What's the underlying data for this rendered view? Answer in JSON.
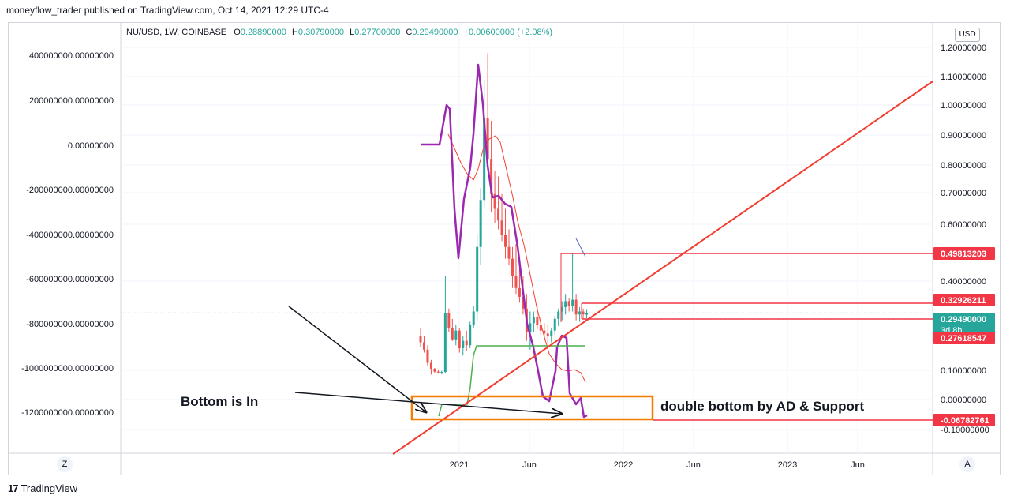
{
  "header": {
    "published": "moneyflow_trader published on TradingView.com, Oct 14, 2021 12:29 UTC-4"
  },
  "legend": {
    "symbol": "NU/USD, 1W, COINBASE",
    "open_label": "O",
    "open": "0.28890000",
    "high_label": "H",
    "high": "0.30790000",
    "low_label": "L",
    "low": "0.27700000",
    "close_label": "C",
    "close": "0.29490000",
    "change": "+0.00600000 (+2.08%)"
  },
  "currency_badge": "USD",
  "buttons": {
    "z": "Z",
    "a": "A"
  },
  "brand": {
    "logo": "17",
    "name": "TradingView"
  },
  "colors": {
    "up": "#26a69a",
    "down": "#ef5350",
    "ad_line": "#9c27b0",
    "ma": "#f44336",
    "support": "#4caf50",
    "trendline": "#f23c2f",
    "box": "#f57c00",
    "price_tag": "#26a69a",
    "level_tag": "#f23645"
  },
  "chart_data": {
    "type": "candlestick",
    "timeframe": "1W",
    "x_ticks": [
      "2021",
      "Jun",
      "2022",
      "Jun",
      "2023",
      "Jun"
    ],
    "right_axis_ticks": [
      "1.20000000",
      "1.10000000",
      "1.00000000",
      "0.90000000",
      "0.80000000",
      "0.70000000",
      "0.60000000",
      "0.40000000",
      "0.10000000",
      "0.00000000",
      "-0.10000000"
    ],
    "left_axis_ticks": [
      "400000000.00000000",
      "200000000.00000000",
      "0.00000000",
      "-200000000.00000000",
      "-400000000.00000000",
      "-600000000.00000000",
      "-800000000.00000000",
      "-1000000000.00000000",
      "-1200000000.00000000"
    ],
    "price_levels": [
      {
        "label": "0.49813203",
        "value": 0.498
      },
      {
        "label": "0.32926211",
        "value": 0.329
      },
      {
        "label": "0.29490000",
        "value": 0.2949,
        "current": true,
        "countdown": "3d 8h"
      },
      {
        "label": "0.27618547",
        "value": 0.276
      },
      {
        "label": "-0.06782761",
        "value": -0.0678
      }
    ],
    "candles": [
      [
        0.215,
        0.245,
        0.18,
        0.195
      ],
      [
        0.195,
        0.215,
        0.16,
        0.17
      ],
      [
        0.17,
        0.185,
        0.115,
        0.125
      ],
      [
        0.125,
        0.135,
        0.085,
        0.105
      ],
      [
        0.105,
        0.108,
        0.09,
        0.095
      ],
      [
        0.095,
        0.1,
        0.088,
        0.092
      ],
      [
        0.092,
        0.098,
        0.086,
        0.094
      ],
      [
        0.094,
        0.42,
        0.09,
        0.295
      ],
      [
        0.295,
        0.31,
        0.23,
        0.245
      ],
      [
        0.245,
        0.275,
        0.2,
        0.205
      ],
      [
        0.205,
        0.255,
        0.185,
        0.235
      ],
      [
        0.235,
        0.245,
        0.16,
        0.175
      ],
      [
        0.175,
        0.215,
        0.15,
        0.2
      ],
      [
        0.2,
        0.235,
        0.165,
        0.185
      ],
      [
        0.185,
        0.265,
        0.175,
        0.255
      ],
      [
        0.255,
        0.32,
        0.245,
        0.3
      ],
      [
        0.3,
        0.56,
        0.27,
        0.52
      ],
      [
        0.52,
        0.72,
        0.46,
        0.68
      ],
      [
        0.68,
        1.09,
        0.65,
        0.96
      ],
      [
        0.96,
        1.18,
        0.78,
        0.82
      ],
      [
        0.82,
        0.95,
        0.64,
        0.7
      ],
      [
        0.7,
        0.78,
        0.6,
        0.65
      ],
      [
        0.65,
        0.76,
        0.58,
        0.61
      ],
      [
        0.61,
        0.7,
        0.54,
        0.56
      ],
      [
        0.56,
        0.65,
        0.48,
        0.52
      ],
      [
        0.52,
        0.58,
        0.46,
        0.48
      ],
      [
        0.48,
        0.52,
        0.38,
        0.42
      ],
      [
        0.42,
        0.53,
        0.36,
        0.38
      ],
      [
        0.38,
        0.45,
        0.33,
        0.35
      ],
      [
        0.35,
        0.42,
        0.29,
        0.31
      ],
      [
        0.31,
        0.36,
        0.2,
        0.23
      ],
      [
        0.23,
        0.3,
        0.17,
        0.26
      ],
      [
        0.26,
        0.3,
        0.23,
        0.28
      ],
      [
        0.28,
        0.32,
        0.24,
        0.255
      ],
      [
        0.255,
        0.28,
        0.22,
        0.235
      ],
      [
        0.235,
        0.26,
        0.2,
        0.225
      ],
      [
        0.225,
        0.255,
        0.19,
        0.215
      ],
      [
        0.215,
        0.245,
        0.195,
        0.235
      ],
      [
        0.235,
        0.285,
        0.22,
        0.275
      ],
      [
        0.275,
        0.31,
        0.25,
        0.3
      ],
      [
        0.3,
        0.335,
        0.27,
        0.315
      ],
      [
        0.315,
        0.36,
        0.29,
        0.335
      ],
      [
        0.335,
        0.345,
        0.3,
        0.32
      ],
      [
        0.32,
        0.498,
        0.3,
        0.34
      ],
      [
        0.34,
        0.36,
        0.27,
        0.29
      ],
      [
        0.29,
        0.315,
        0.265,
        0.3
      ],
      [
        0.3,
        0.31,
        0.275,
        0.29
      ],
      [
        0.289,
        0.308,
        0.277,
        0.295
      ]
    ],
    "annotations": [
      {
        "text": "Bottom is In"
      },
      {
        "text": "double bottom by AD & Support"
      }
    ]
  }
}
